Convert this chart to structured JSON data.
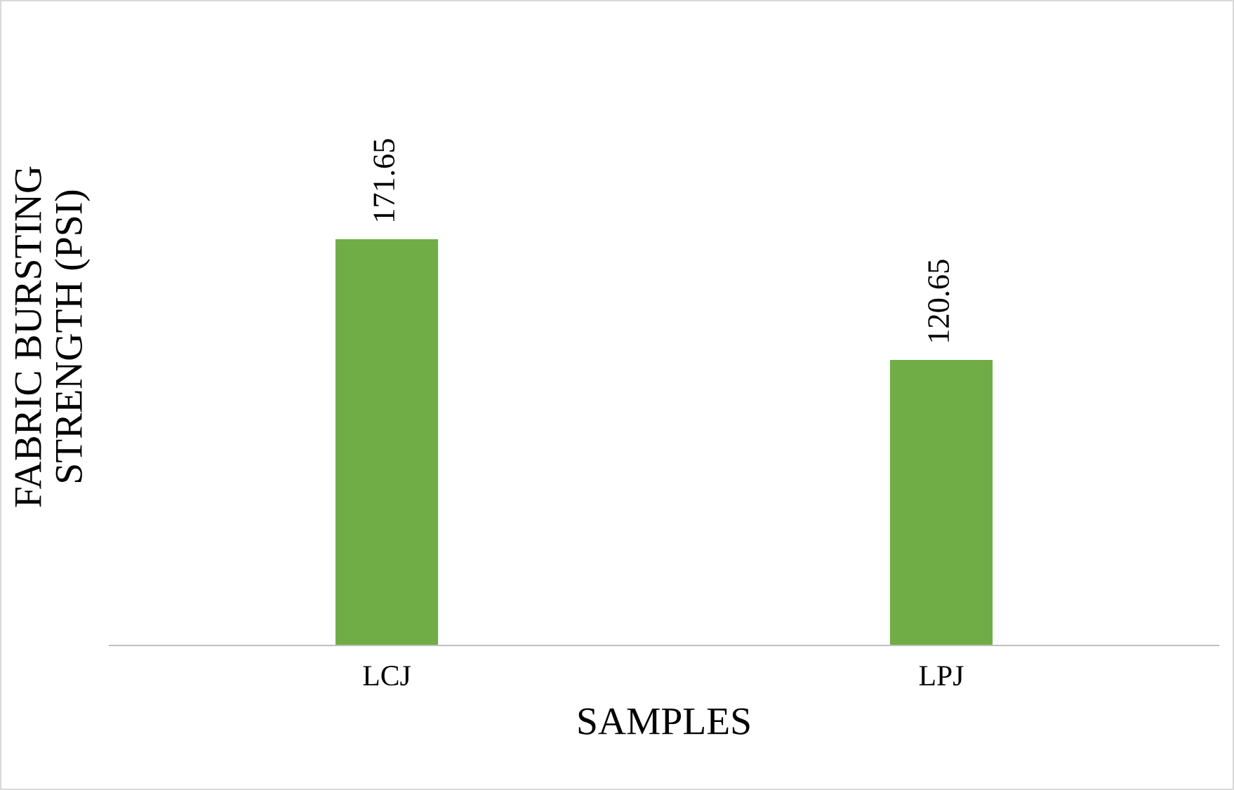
{
  "chart_data": {
    "type": "bar",
    "relative": false,
    "xlabel": "SAMPLES",
    "ylabel": "FABRIC BURSTING\nSTRENGTH (PSI)",
    "categories": [
      "LCJ",
      "LPJ"
    ],
    "values": [
      171.65,
      120.65
    ],
    "color": "#70ad47",
    "data_labels": true,
    "grid": false,
    "legend": false
  }
}
